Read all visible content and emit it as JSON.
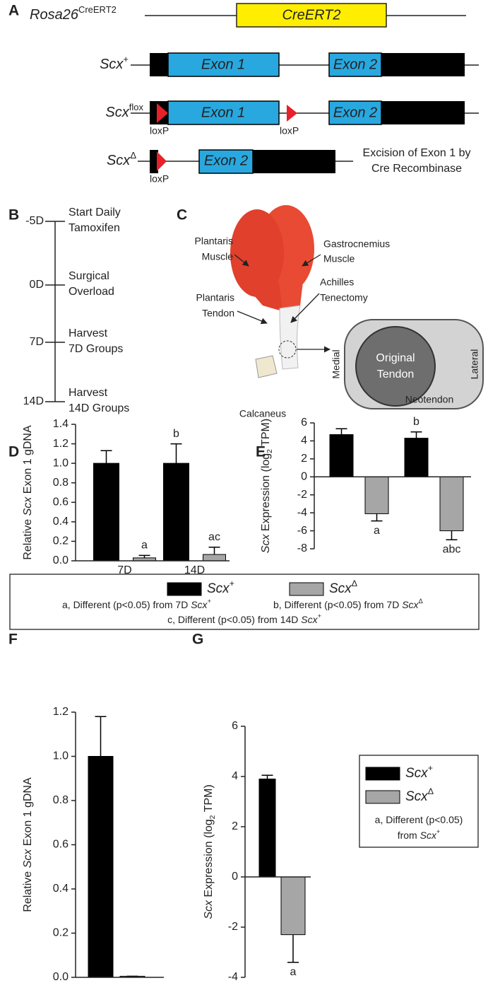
{
  "panel_labels": [
    "A",
    "B",
    "C",
    "D",
    "E",
    "F",
    "G"
  ],
  "constructs": {
    "rosa": {
      "name": [
        {
          "italic": "Rosa26"
        },
        {
          "sup": "CreERT2"
        }
      ],
      "cassette": "CreERT2"
    },
    "wt": {
      "name": [
        {
          "italic": "Scx"
        },
        {
          "sup": "+"
        }
      ],
      "exon1": "Exon 1",
      "exon2": "Exon 2"
    },
    "flox": {
      "name": [
        {
          "italic": "Scx"
        },
        {
          "sup": "flox"
        }
      ],
      "exon1": "Exon 1",
      "exon2": "Exon 2",
      "loxp": [
        "loxP",
        "loxP"
      ]
    },
    "del": {
      "name": [
        {
          "italic": "Scx"
        },
        {
          "sup": "Δ"
        }
      ],
      "exon2": "Exon 2",
      "loxp": [
        "loxP"
      ],
      "note": [
        "Excision of Exon 1 by",
        "Cre Recombinase"
      ]
    }
  },
  "timeline": [
    {
      "day": "-5D",
      "event": [
        "Start Daily",
        "Tamoxifen"
      ]
    },
    {
      "day": "0D",
      "event": [
        "Surgical",
        "Overload"
      ]
    },
    {
      "day": "7D",
      "event": [
        "Harvest",
        "7D Groups"
      ]
    },
    {
      "day": "14D",
      "event": [
        "Harvest",
        "14D Groups"
      ]
    }
  ],
  "anatomy": {
    "plantaris_muscle": [
      "Plantaris",
      "Muscle"
    ],
    "gastrocnemius_muscle": [
      "Gastrocnemius",
      "Muscle"
    ],
    "plantaris_tendon": [
      "Plantaris",
      "Tendon"
    ],
    "achilles_tenectomy": [
      "Achilles",
      "Tenectomy"
    ],
    "calcaneus": "Calcaneus",
    "original_tendon": [
      "Original",
      "Tendon"
    ],
    "medial": "Medial",
    "lateral": "Lateral",
    "neotendon": "Neotendon"
  },
  "chart_data": [
    {
      "type": "bar",
      "ylabel": [
        "Relative ",
        {
          "italic": "Scx"
        },
        " Exon 1 gDNA"
      ],
      "categories": [
        "7D",
        "14D"
      ],
      "series": [
        {
          "color": "#000000",
          "values": [
            1.0,
            1.0
          ],
          "errors": [
            0.13,
            0.2
          ],
          "letters": [
            null,
            "b"
          ]
        },
        {
          "color": "#a6a6a6",
          "values": [
            0.03,
            0.065
          ],
          "errors": [
            0.025,
            0.075
          ],
          "letters": [
            "a",
            "ac"
          ]
        }
      ],
      "ylim": [
        0,
        1.4
      ],
      "yticks": [
        {
          "value": 0,
          "label": "0.0"
        },
        0.2,
        0.4,
        0.6,
        0.8,
        {
          "value": 1,
          "label": "1.0"
        },
        1.2,
        1.4
      ]
    },
    {
      "type": "bar",
      "ylabel": [
        {
          "italic": "Scx"
        },
        " Expression (log",
        {
          "sub": "2"
        },
        " TPM)"
      ],
      "categories": [
        null,
        null
      ],
      "series": [
        {
          "color": "#000000",
          "values": [
            4.7,
            4.3
          ],
          "errors": [
            0.65,
            0.7
          ],
          "letters": [
            null,
            "b"
          ]
        },
        {
          "color": "#a6a6a6",
          "values": [
            -4.1,
            -6.0
          ],
          "errors": [
            0.8,
            1.0
          ],
          "letters": [
            "a",
            "abc"
          ]
        }
      ],
      "ylim": [
        -8,
        6
      ],
      "yticks": [
        -8,
        -6,
        -4,
        -2,
        0,
        2,
        4,
        6
      ]
    },
    {
      "type": "bar",
      "ylabel": [
        "Relative ",
        {
          "italic": "Scx"
        },
        " Exon 1 gDNA"
      ],
      "categories": [
        null
      ],
      "series": [
        {
          "color": "#000000",
          "values": [
            1.0
          ],
          "errors": [
            0.18
          ],
          "letters": [
            null
          ]
        },
        {
          "color": "#a6a6a6",
          "values": [
            0.005
          ],
          "errors": [
            0
          ],
          "letters": [
            null
          ]
        }
      ],
      "ylim": [
        0,
        1.2
      ],
      "yticks": [
        {
          "value": 0,
          "label": "0.0"
        },
        0.2,
        0.4,
        0.6,
        0.8,
        {
          "value": 1,
          "label": "1.0"
        },
        1.2
      ]
    },
    {
      "type": "bar",
      "ylabel": [
        {
          "italic": "Scx"
        },
        " Expression (log",
        {
          "sub": "2"
        },
        " TPM)"
      ],
      "categories": [
        null
      ],
      "series": [
        {
          "color": "#000000",
          "values": [
            3.9
          ],
          "errors": [
            0.15
          ],
          "letters": [
            null
          ]
        },
        {
          "color": "#a6a6a6",
          "values": [
            -2.3
          ],
          "errors": [
            1.1
          ],
          "letters": [
            "a"
          ]
        }
      ],
      "ylim": [
        -4,
        6
      ],
      "yticks": [
        -4,
        -2,
        0,
        2,
        4,
        6
      ]
    }
  ],
  "legend_de": {
    "entries": [
      {
        "name": [
          {
            "italic": "Scx"
          },
          {
            "sup": "+"
          }
        ],
        "color": "#000000"
      },
      {
        "name": [
          {
            "italic": "Scx"
          },
          {
            "sup": "Δ"
          }
        ],
        "color": "#a6a6a6"
      }
    ],
    "notes": [
      [
        "a, Different (p<0.05) from 7D ",
        {
          "italic": "Scx"
        },
        {
          "sup": "+"
        }
      ],
      [
        "b, Different (p<0.05) from 7D ",
        {
          "italic": "Scx"
        },
        {
          "sup": "Δ"
        }
      ],
      [
        "c, Different (p<0.05) from 14D ",
        {
          "italic": "Scx"
        },
        {
          "sup": "+"
        }
      ]
    ]
  },
  "legend_g": {
    "entries": [
      {
        "name": [
          {
            "italic": "Scx"
          },
          {
            "sup": "+"
          }
        ],
        "color": "#000000"
      },
      {
        "name": [
          {
            "italic": "Scx"
          },
          {
            "sup": "Δ"
          }
        ],
        "color": "#a6a6a6"
      }
    ],
    "notes": [
      [
        "a, Different (p<0.05)"
      ],
      [
        "from ",
        {
          "italic": "Scx"
        },
        {
          "sup": "+"
        }
      ]
    ]
  }
}
